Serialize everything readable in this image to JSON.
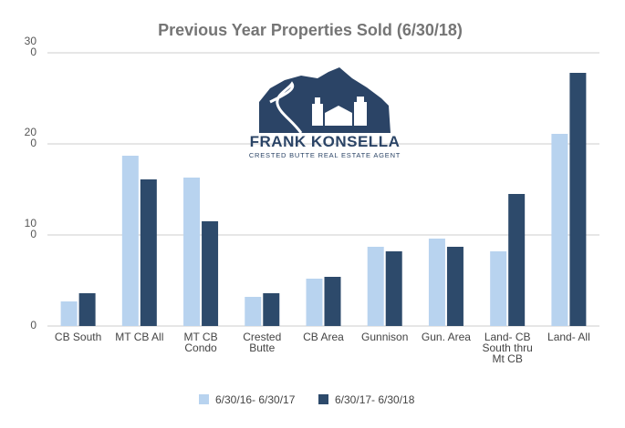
{
  "chart_data": {
    "type": "bar",
    "title": "Previous Year Properties Sold (6/30/18)",
    "xlabel": "",
    "ylabel": "",
    "ylim": [
      0,
      30
    ],
    "yticks": [
      {
        "value": 0,
        "label": "0"
      },
      {
        "value": 10,
        "label": "10\n0"
      },
      {
        "value": 20,
        "label": "20\n0"
      },
      {
        "value": 30,
        "label": "30\n0"
      }
    ],
    "grid": true,
    "legend_position": "bottom",
    "categories": [
      "CB South",
      "MT CB All",
      "MT CB\nCondo",
      "Crested\nButte",
      "CB Area",
      "Gunnison",
      "Gun. Area",
      "Land- CB\nSouth thru\nMt CB",
      "Land- All"
    ],
    "series": [
      {
        "name": "6/30/16- 6/30/17",
        "color": "#b8d3ef",
        "values": [
          2.7,
          18.7,
          16.3,
          3.2,
          5.2,
          8.7,
          9.6,
          8.2,
          21.1
        ]
      },
      {
        "name": "6/30/17- 6/30/18",
        "color": "#2d4a6b",
        "values": [
          3.6,
          16.1,
          11.5,
          3.6,
          5.4,
          8.2,
          8.7,
          14.5,
          27.8
        ]
      }
    ]
  },
  "logo": {
    "name": "FRANK KONSELLA",
    "tagline": "CRESTED BUTTE REAL ESTATE AGENT",
    "color": "#2b4466"
  }
}
